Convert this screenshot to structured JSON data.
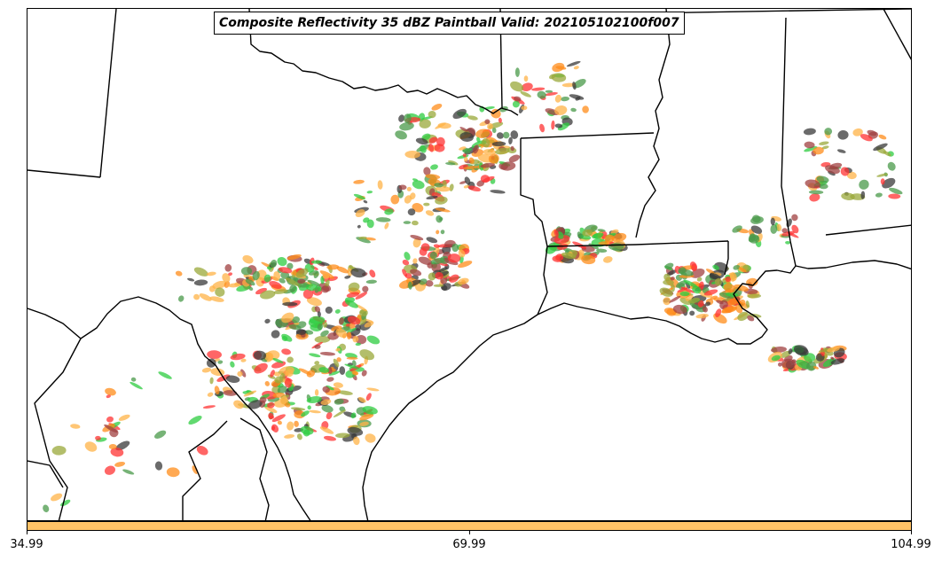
{
  "title": "Composite Reflectivity 35 dBZ Paintball Valid: 202105102100f007",
  "colorbar": {
    "color": "#ffc266",
    "ticks": [
      "34.99",
      "69.99",
      "104.99"
    ]
  },
  "map": {
    "region": "Texas, Oklahoma, Arkansas, Louisiana and northern Mexico",
    "reflectivity_threshold_dbz": 35,
    "member_colors": [
      "#ff3333",
      "#ff8c1a",
      "#2ecc40",
      "#9aa83a",
      "#a04040",
      "#3a3a3a",
      "#ffb347",
      "#4a9a4a"
    ],
    "line_color": "#000000",
    "water_color": "#ffffff"
  }
}
